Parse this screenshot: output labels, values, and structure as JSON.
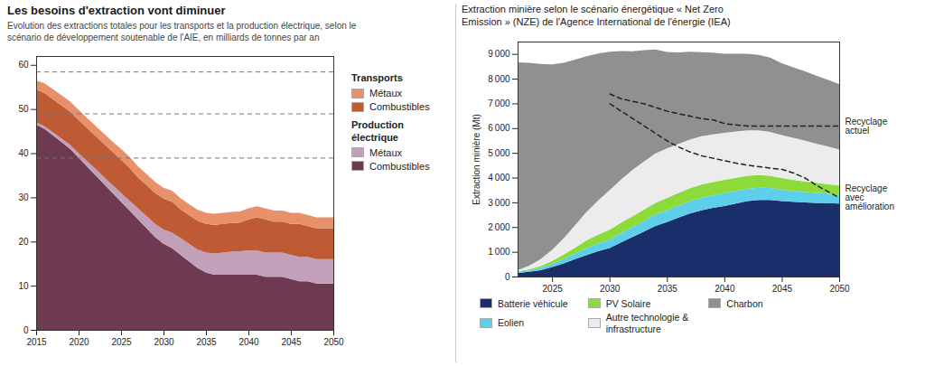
{
  "chart_data": [
    {
      "type": "area",
      "stacked": true,
      "title": "Les besoins d'extraction vont diminuer",
      "subtitle": "Evolution des extractions totales pour les transports et la production électrique, selon le\nscénario de développement soutenable de l'AIE, en milliards de tonnes par an",
      "x": [
        2015,
        2016,
        2017,
        2018,
        2019,
        2020,
        2021,
        2022,
        2023,
        2024,
        2025,
        2026,
        2027,
        2028,
        2029,
        2030,
        2031,
        2032,
        2033,
        2034,
        2035,
        2036,
        2037,
        2038,
        2039,
        2040,
        2041,
        2042,
        2043,
        2044,
        2045,
        2046,
        2047,
        2048,
        2049,
        2050
      ],
      "series": [
        {
          "name": "Combustibles",
          "color": "#6e3a52",
          "values": [
            46.5,
            45.5,
            44.0,
            42.5,
            41.0,
            39.0,
            37.0,
            35.0,
            33.0,
            31.0,
            29.0,
            27.0,
            25.0,
            23.0,
            21.0,
            19.5,
            18.5,
            17.0,
            15.5,
            14.0,
            13.0,
            12.5,
            12.5,
            12.5,
            12.5,
            12.5,
            12.5,
            12.0,
            12.0,
            12.0,
            11.5,
            11.0,
            11.0,
            10.5,
            10.5,
            10.5
          ]
        },
        {
          "name": "Métaux",
          "color": "#c2a0ba",
          "values": [
            0.5,
            0.6,
            0.7,
            0.8,
            0.9,
            1.0,
            1.2,
            1.4,
            1.6,
            1.8,
            2.0,
            2.2,
            2.5,
            2.8,
            3.0,
            3.2,
            3.5,
            3.8,
            4.0,
            4.2,
            4.5,
            4.8,
            5.0,
            5.2,
            5.3,
            5.5,
            5.5,
            5.5,
            5.5,
            5.5,
            5.5,
            5.5,
            5.5,
            5.5,
            5.5,
            5.5
          ]
        },
        {
          "name": "Combustibles",
          "color": "#be5b35",
          "values": [
            7.5,
            7.5,
            7.5,
            7.5,
            7.5,
            7.5,
            7.5,
            7.5,
            7.5,
            7.5,
            7.5,
            7.5,
            7.0,
            7.0,
            7.0,
            7.0,
            7.0,
            6.5,
            6.5,
            6.5,
            6.5,
            6.5,
            6.5,
            6.5,
            6.5,
            7.0,
            7.5,
            7.5,
            7.0,
            7.0,
            7.0,
            7.5,
            7.0,
            7.0,
            7.0,
            7.0
          ]
        },
        {
          "name": "Métaux",
          "color": "#e8906a",
          "values": [
            2.0,
            2.2,
            2.3,
            2.3,
            2.3,
            2.3,
            2.3,
            2.3,
            2.3,
            2.3,
            2.5,
            2.5,
            2.5,
            2.5,
            2.5,
            2.5,
            2.5,
            2.5,
            2.5,
            2.5,
            2.5,
            2.5,
            2.5,
            2.5,
            2.5,
            2.5,
            2.5,
            2.5,
            2.5,
            2.5,
            2.5,
            2.5,
            2.5,
            2.5,
            2.5,
            2.5
          ]
        }
      ],
      "annotations": [
        "Transports",
        "Production\nélectrique"
      ],
      "hlines": [
        58.5,
        49.0,
        39.0
      ],
      "xlim": [
        2015,
        2050
      ],
      "xticks": [
        2015,
        2020,
        2025,
        2030,
        2035,
        2040,
        2045,
        2050
      ],
      "ylim": [
        0,
        62
      ],
      "yticks": [
        0,
        10,
        20,
        30,
        40,
        50,
        60
      ],
      "grid": false,
      "legend": "right"
    },
    {
      "type": "area",
      "stacked": true,
      "title": "Extraction minière selon le scénario énergétique « Net Zero\nEmission » (NZE) de l'Agence International de l'énergie (IEA)",
      "ylabel": "Extraction minière (Mt)",
      "x": [
        2022,
        2023,
        2024,
        2025,
        2026,
        2027,
        2028,
        2029,
        2030,
        2031,
        2032,
        2033,
        2034,
        2035,
        2036,
        2037,
        2038,
        2039,
        2040,
        2041,
        2042,
        2043,
        2044,
        2045,
        2046,
        2047,
        2048,
        2049,
        2050
      ],
      "series": [
        {
          "name": "Batterie véhicule",
          "color": "#1a2e6b",
          "values": [
            150,
            190,
            260,
            380,
            530,
            700,
            870,
            1020,
            1150,
            1380,
            1600,
            1820,
            2050,
            2200,
            2380,
            2550,
            2680,
            2780,
            2850,
            2950,
            3050,
            3100,
            3100,
            3050,
            3020,
            3000,
            2980,
            2970,
            2950
          ]
        },
        {
          "name": "Eolien",
          "color": "#5dcfea",
          "values": [
            40,
            60,
            90,
            130,
            180,
            230,
            280,
            310,
            340,
            370,
            400,
            420,
            450,
            480,
            490,
            500,
            510,
            510,
            520,
            510,
            500,
            490,
            480,
            460,
            440,
            420,
            400,
            380,
            360
          ]
        },
        {
          "name": "PV Solaire",
          "color": "#8ddb3a",
          "values": [
            20,
            40,
            70,
            120,
            180,
            240,
            310,
            360,
            400,
            420,
            440,
            460,
            480,
            500,
            510,
            520,
            530,
            530,
            540,
            530,
            520,
            510,
            490,
            470,
            450,
            430,
            410,
            390,
            370
          ]
        },
        {
          "name": "Autre technologie &\ninfrastructure",
          "color": "#ececec",
          "values": [
            50,
            150,
            280,
            450,
            650,
            900,
            1150,
            1380,
            1600,
            1750,
            1870,
            1950,
            2000,
            2000,
            1980,
            1970,
            1950,
            1930,
            1900,
            1870,
            1840,
            1810,
            1780,
            1740,
            1700,
            1650,
            1580,
            1520,
            1450
          ]
        },
        {
          "name": "Charbon",
          "color": "#909090",
          "values": [
            8400,
            8200,
            7900,
            7500,
            7100,
            6700,
            6300,
            5950,
            5600,
            5200,
            4800,
            4500,
            4200,
            3900,
            3700,
            3550,
            3400,
            3300,
            3200,
            3150,
            3100,
            3050,
            3000,
            2900,
            2850,
            2800,
            2750,
            2700,
            2650
          ]
        },
        {
          "name": "Recyclage\nactuel",
          "type": "line",
          "line_style": "dashed",
          "color": "#222222",
          "values": [
            null,
            null,
            null,
            null,
            null,
            null,
            null,
            null,
            7400,
            7200,
            7100,
            7000,
            6850,
            6700,
            6600,
            6500,
            6400,
            6350,
            6200,
            6150,
            6100,
            6100,
            6100,
            6100,
            6100,
            6100,
            6100,
            6100,
            6100
          ]
        },
        {
          "name": "Recyclage\navec\namélioration",
          "type": "line",
          "line_style": "dashed",
          "color": "#222222",
          "values": [
            null,
            null,
            null,
            null,
            null,
            null,
            null,
            null,
            7000,
            6700,
            6400,
            6100,
            5800,
            5500,
            5250,
            5050,
            4900,
            4800,
            4700,
            4600,
            4520,
            4460,
            4400,
            4350,
            4200,
            4000,
            3700,
            3450,
            3200
          ]
        }
      ],
      "xlim": [
        2022,
        2050
      ],
      "xticks": [
        2025,
        2030,
        2035,
        2040,
        2045,
        2050
      ],
      "ylim": [
        0,
        9500
      ],
      "yticks": [
        0,
        {
          "value": 1000,
          "label": "1 000"
        },
        {
          "value": 2000,
          "label": "2 000"
        },
        {
          "value": 3000,
          "label": "3 000"
        },
        {
          "value": 4000,
          "label": "4 000"
        },
        {
          "value": 5000,
          "label": "5 000"
        },
        {
          "value": 6000,
          "label": "6 000"
        },
        {
          "value": 7000,
          "label": "7 000"
        },
        {
          "value": 8000,
          "label": "8 000"
        },
        {
          "value": 9000,
          "label": "9 000"
        }
      ],
      "grid": false,
      "legend": "bottom"
    }
  ]
}
